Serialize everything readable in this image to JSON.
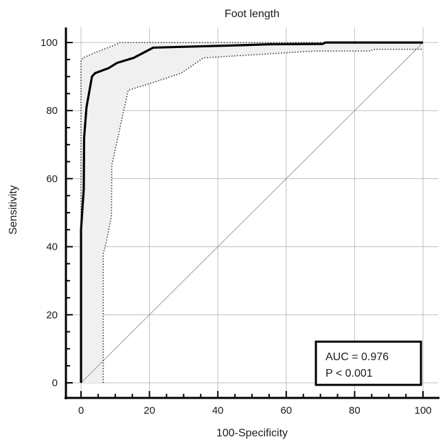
{
  "chart_data": {
    "type": "line",
    "title": "Foot length",
    "xlabel": "100-Specificity",
    "ylabel": "Sensitivity",
    "xlim": [
      0,
      100
    ],
    "ylim": [
      0,
      100
    ],
    "xticks": [
      0,
      20,
      40,
      60,
      80,
      100
    ],
    "yticks": [
      0,
      20,
      40,
      60,
      80,
      100
    ],
    "grid": true,
    "series": [
      {
        "role": "roc",
        "style": "solid-thick",
        "color": "#000000",
        "x": [
          0,
          0,
          0.8,
          0.9,
          1.6,
          3.2,
          4.1,
          8.1,
          10.5,
          15.4,
          21.1,
          46.3,
          55.3,
          70.7,
          71.5,
          100
        ],
        "y": [
          0,
          45,
          57,
          72,
          81,
          90,
          91,
          92.5,
          94,
          95.5,
          98.5,
          99.2,
          99.5,
          99.6,
          100,
          100
        ]
      },
      {
        "role": "ci-upper",
        "style": "dotted",
        "color": "#333333",
        "x": [
          0,
          0,
          0.6,
          4,
          10.5,
          11.3,
          21.1,
          46.3,
          100
        ],
        "y": [
          0,
          94.5,
          95.5,
          97,
          99.5,
          100,
          100,
          100,
          100
        ]
      },
      {
        "role": "ci-lower",
        "style": "dotted",
        "color": "#333333",
        "x": [
          6.5,
          6.5,
          7.3,
          8.9,
          9.0,
          13.8,
          20.3,
          29.3,
          35.8,
          60.2,
          68.3,
          84.6,
          85.4,
          100
        ],
        "y": [
          0,
          38,
          41,
          49,
          64,
          86,
          88,
          91,
          95.5,
          97,
          97.5,
          97.5,
          98,
          98
        ]
      },
      {
        "role": "reference",
        "style": "thin",
        "color": "#9a9a9a",
        "x": [
          0,
          100
        ],
        "y": [
          0,
          100
        ]
      }
    ],
    "ci_fill": "#f0f0f0",
    "annotation": {
      "lines": [
        "AUC = 0.976",
        "P < 0.001"
      ],
      "placement": "bottom-right"
    }
  }
}
